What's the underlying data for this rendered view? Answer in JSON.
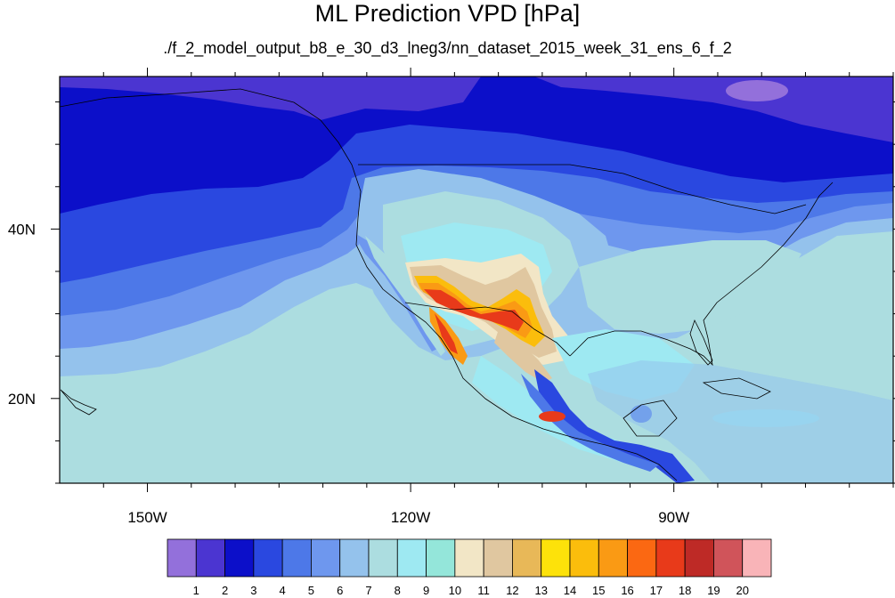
{
  "title": "ML Prediction VPD [hPa]",
  "subtitle": "./f_2_model_output_b8_e_30_d3_lneg3/nn_dataset_2015_week_31_ens_6_f_2",
  "map": {
    "lon_range": [
      -160,
      -65
    ],
    "lat_range": [
      10,
      58
    ],
    "x_ticks": [
      {
        "lon": -150,
        "label": "150W"
      },
      {
        "lon": -120,
        "label": "120W"
      },
      {
        "lon": -90,
        "label": "90W"
      }
    ],
    "y_ticks": [
      {
        "lat": 40,
        "label": "40N"
      },
      {
        "lat": 20,
        "label": "20N"
      }
    ]
  },
  "colorbar": {
    "colors": [
      "#9370db",
      "#4b35d1",
      "#0c0fc9",
      "#2a48e0",
      "#4d78e8",
      "#6e97ee",
      "#94c2ec",
      "#acdde0",
      "#9ee9f2",
      "#94e6da",
      "#f2e6c6",
      "#e0c7a0",
      "#e8b858",
      "#fde20a",
      "#fbbd0c",
      "#fa9a14",
      "#fb6812",
      "#e83a1a",
      "#be2a26",
      "#d0545a",
      "#f9b4b8"
    ],
    "labels": [
      "1",
      "2",
      "3",
      "4",
      "5",
      "6",
      "7",
      "8",
      "9",
      "10",
      "11",
      "12",
      "13",
      "14",
      "15",
      "16",
      "17",
      "18",
      "19",
      "20"
    ]
  }
}
